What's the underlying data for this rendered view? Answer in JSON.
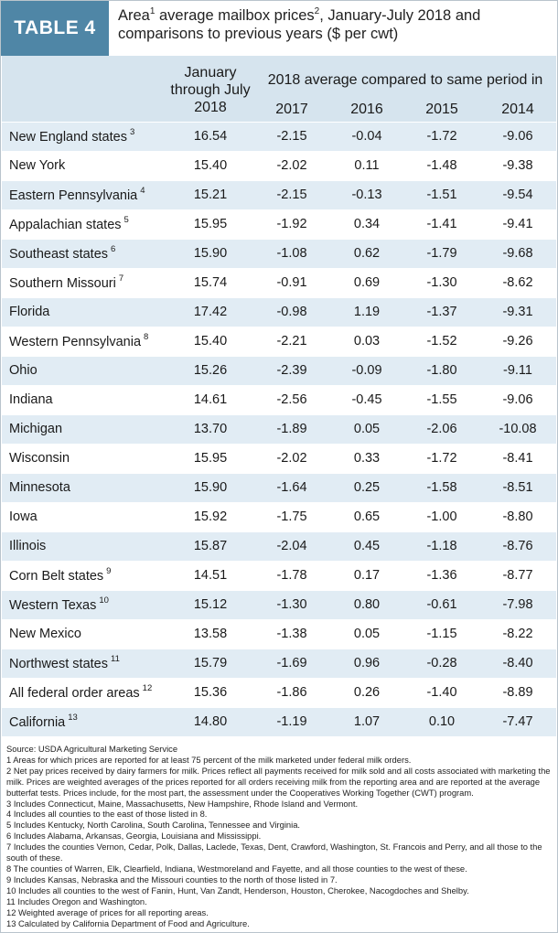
{
  "badge": "TABLE 4",
  "title": {
    "part1": "Area",
    "sup1": "1",
    "part2": " average mailbox prices",
    "sup2": "2",
    "part3": ", January-July 2018 and comparisons to previous years ($ per cwt)"
  },
  "header": {
    "period": "January through July 2018",
    "compare": "2018 average compared to same period in",
    "years": [
      "2017",
      "2016",
      "2015",
      "2014"
    ]
  },
  "rows": [
    {
      "area": "New England states",
      "note": "3",
      "v": [
        "16.54",
        "-2.15",
        "-0.04",
        "-1.72",
        "-9.06"
      ]
    },
    {
      "area": "New York",
      "note": "",
      "v": [
        "15.40",
        "-2.02",
        "0.11",
        "-1.48",
        "-9.38"
      ]
    },
    {
      "area": "Eastern Pennsylvania",
      "note": "4",
      "v": [
        "15.21",
        "-2.15",
        "-0.13",
        "-1.51",
        "-9.54"
      ]
    },
    {
      "area": "Appalachian states",
      "note": "5",
      "v": [
        "15.95",
        "-1.92",
        "0.34",
        "-1.41",
        "-9.41"
      ]
    },
    {
      "area": "Southeast states",
      "note": "6",
      "v": [
        "15.90",
        "-1.08",
        "0.62",
        "-1.79",
        "-9.68"
      ]
    },
    {
      "area": "Southern Missouri",
      "note": "7",
      "v": [
        "15.74",
        "-0.91",
        "0.69",
        "-1.30",
        "-8.62"
      ]
    },
    {
      "area": "Florida",
      "note": "",
      "v": [
        "17.42",
        "-0.98",
        "1.19",
        "-1.37",
        "-9.31"
      ]
    },
    {
      "area": "Western Pennsylvania",
      "note": "8",
      "v": [
        "15.40",
        "-2.21",
        "0.03",
        "-1.52",
        "-9.26"
      ]
    },
    {
      "area": "Ohio",
      "note": "",
      "v": [
        "15.26",
        "-2.39",
        "-0.09",
        "-1.80",
        "-9.11"
      ]
    },
    {
      "area": "Indiana",
      "note": "",
      "v": [
        "14.61",
        "-2.56",
        "-0.45",
        "-1.55",
        "-9.06"
      ]
    },
    {
      "area": "Michigan",
      "note": "",
      "v": [
        "13.70",
        "-1.89",
        "0.05",
        "-2.06",
        "-10.08"
      ]
    },
    {
      "area": "Wisconsin",
      "note": "",
      "v": [
        "15.95",
        "-2.02",
        "0.33",
        "-1.72",
        "-8.41"
      ]
    },
    {
      "area": "Minnesota",
      "note": "",
      "v": [
        "15.90",
        "-1.64",
        "0.25",
        "-1.58",
        "-8.51"
      ]
    },
    {
      "area": "Iowa",
      "note": "",
      "v": [
        "15.92",
        "-1.75",
        "0.65",
        "-1.00",
        "-8.80"
      ]
    },
    {
      "area": "Illinois",
      "note": "",
      "v": [
        "15.87",
        "-2.04",
        "0.45",
        "-1.18",
        "-8.76"
      ]
    },
    {
      "area": "Corn Belt states",
      "note": "9",
      "v": [
        "14.51",
        "-1.78",
        "0.17",
        "-1.36",
        "-8.77"
      ]
    },
    {
      "area": "Western Texas",
      "note": "10",
      "v": [
        "15.12",
        "-1.30",
        "0.80",
        "-0.61",
        "-7.98"
      ]
    },
    {
      "area": "New Mexico",
      "note": "",
      "v": [
        "13.58",
        "-1.38",
        "0.05",
        "-1.15",
        "-8.22"
      ]
    },
    {
      "area": "Northwest states",
      "note": "11",
      "v": [
        "15.79",
        "-1.69",
        "0.96",
        "-0.28",
        "-8.40"
      ]
    },
    {
      "area": "All federal order areas",
      "note": "12",
      "v": [
        "15.36",
        "-1.86",
        "0.26",
        "-1.40",
        "-8.89"
      ]
    },
    {
      "area": "California",
      "note": "13",
      "v": [
        "14.80",
        "-1.19",
        "1.07",
        "0.10",
        "-7.47"
      ]
    }
  ],
  "notes": [
    "Source: USDA Agricultural Marketing Service",
    "1 Areas for which prices are reported for at least 75 percent of the milk marketed under federal milk orders.",
    "2 Net pay prices received by dairy farmers for milk. Prices reflect all payments received for milk sold and all costs associated with marketing the milk. Prices are weighted averages of the prices reported for all orders receiving milk from the reporting area and are reported at the average butterfat tests. Prices include, for the most part, the assessment under the Cooperatives Working Together (CWT) program.",
    "3 Includes Connecticut, Maine, Massachusetts, New Hampshire, Rhode Island and Vermont.",
    "4 Includes all counties to the east of those listed in 8.",
    "5 Includes Kentucky, North Carolina, South Carolina, Tennessee and Virginia.",
    "6 Includes Alabama, Arkansas, Georgia, Louisiana and Mississippi.",
    "7 Includes the counties Vernon, Cedar, Polk, Dallas, Laclede, Texas, Dent, Crawford, Washington, St. Francois and Perry, and all those to the south of these.",
    "8 The counties of Warren, Elk, Clearfield, Indiana, Westmoreland and Fayette, and all those counties to the west of these.",
    "9 Includes Kansas, Nebraska and the Missouri counties to the north of those listed in 7.",
    "10 Includes all counties to the west of Fanin, Hunt, Van Zandt, Henderson, Houston, Cherokee, Nacogdoches and Shelby.",
    "11 Includes Oregon and Washington.",
    "12 Weighted average of prices for all reporting areas.",
    "13 Calculated by California Department of Food and Agriculture."
  ]
}
